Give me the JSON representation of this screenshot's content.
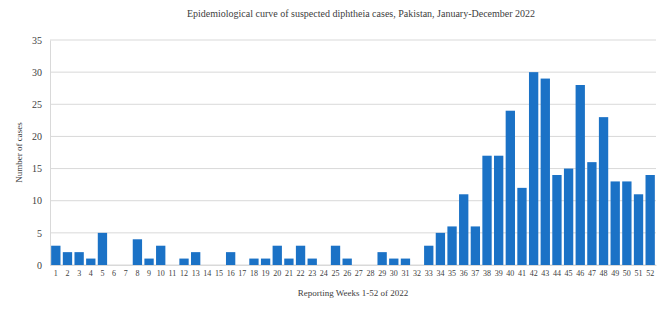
{
  "chart_data": {
    "type": "bar",
    "title": "Epidemiological curve of suspected diphtheia cases, Pakistan, January-December 2022",
    "x_label": "Reporting Weeks 1-52 of 2022",
    "y_label": "Number of cases",
    "categories": [
      "1",
      "2",
      "3",
      "4",
      "5",
      "6",
      "7",
      "8",
      "9",
      "10",
      "11",
      "12",
      "13",
      "14",
      "15",
      "16",
      "17",
      "18",
      "19",
      "20",
      "21",
      "22",
      "23",
      "24",
      "25",
      "26",
      "27",
      "28",
      "29",
      "30",
      "31",
      "32",
      "33",
      "34",
      "35",
      "36",
      "37",
      "38",
      "39",
      "40",
      "41",
      "42",
      "43",
      "44",
      "45",
      "46",
      "47",
      "48",
      "49",
      "50",
      "51",
      "52"
    ],
    "values": [
      3,
      2,
      2,
      1,
      5,
      0,
      0,
      4,
      1,
      3,
      0,
      1,
      2,
      0,
      0,
      2,
      0,
      1,
      1,
      3,
      1,
      3,
      1,
      0,
      3,
      1,
      0,
      0,
      2,
      1,
      1,
      0,
      3,
      5,
      6,
      11,
      6,
      17,
      17,
      24,
      12,
      30,
      29,
      14,
      15,
      28,
      16,
      23,
      13,
      13,
      11,
      14
    ],
    "color": "#1b72c6",
    "ylim": [
      0,
      35
    ],
    "yticks": [
      0,
      5,
      10,
      15,
      20,
      25,
      30,
      35
    ],
    "grid": true
  }
}
